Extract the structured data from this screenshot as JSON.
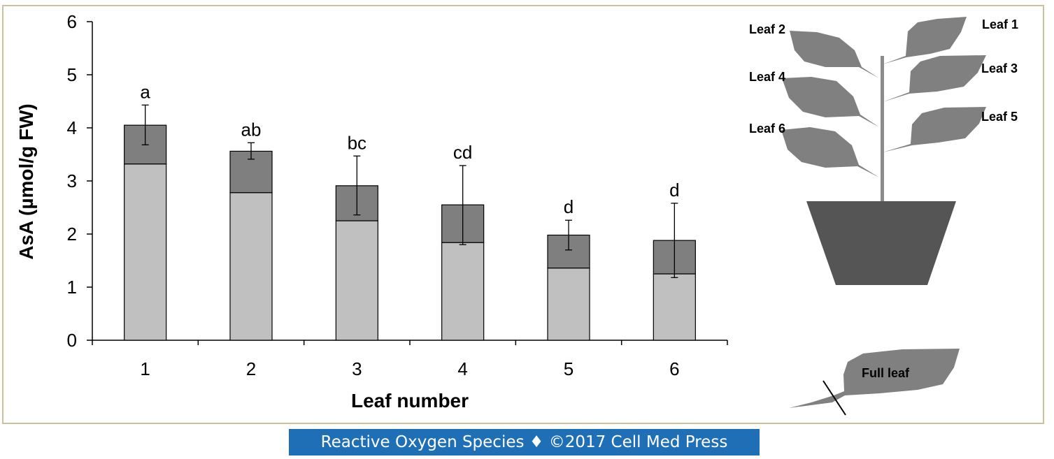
{
  "chart_data": {
    "type": "bar",
    "stacked": true,
    "categories": [
      "1",
      "2",
      "3",
      "4",
      "5",
      "6"
    ],
    "series": [
      {
        "values": [
          3.32,
          2.78,
          2.25,
          1.84,
          1.36,
          1.25
        ],
        "color": "#c0c0c0"
      },
      {
        "values": [
          0.73,
          0.78,
          0.66,
          0.71,
          0.62,
          0.63
        ],
        "color": "#7f7f7f"
      }
    ],
    "totals": [
      4.05,
      3.56,
      2.91,
      2.55,
      1.98,
      1.88
    ],
    "error_bars": [
      [
        3.68,
        4.43
      ],
      [
        3.41,
        3.72
      ],
      [
        2.36,
        3.47
      ],
      [
        1.8,
        3.29
      ],
      [
        1.7,
        2.26
      ],
      [
        1.18,
        2.58
      ]
    ],
    "significance_labels": [
      "a",
      "ab",
      "bc",
      "cd",
      "d",
      "d"
    ],
    "xlabel": "Leaf number",
    "ylabel": "AsA (µmol/g FW)",
    "ylim": [
      0,
      6
    ],
    "yticks": [
      "0",
      "1",
      "2",
      "3",
      "4",
      "5",
      "6"
    ],
    "grid": false,
    "legend": "none"
  },
  "diagram": {
    "leaf_labels": [
      "Leaf 1",
      "Leaf 2",
      "Leaf 3",
      "Leaf 4",
      "Leaf 5",
      "Leaf 6"
    ],
    "full_leaf_label": "Full leaf",
    "leaf_color": "#808080",
    "pot_color": "#555555"
  },
  "footer": {
    "text": "Reactive Oxygen Species ♦ ©2017 Cell Med Press",
    "background": "#1f6fb7"
  }
}
